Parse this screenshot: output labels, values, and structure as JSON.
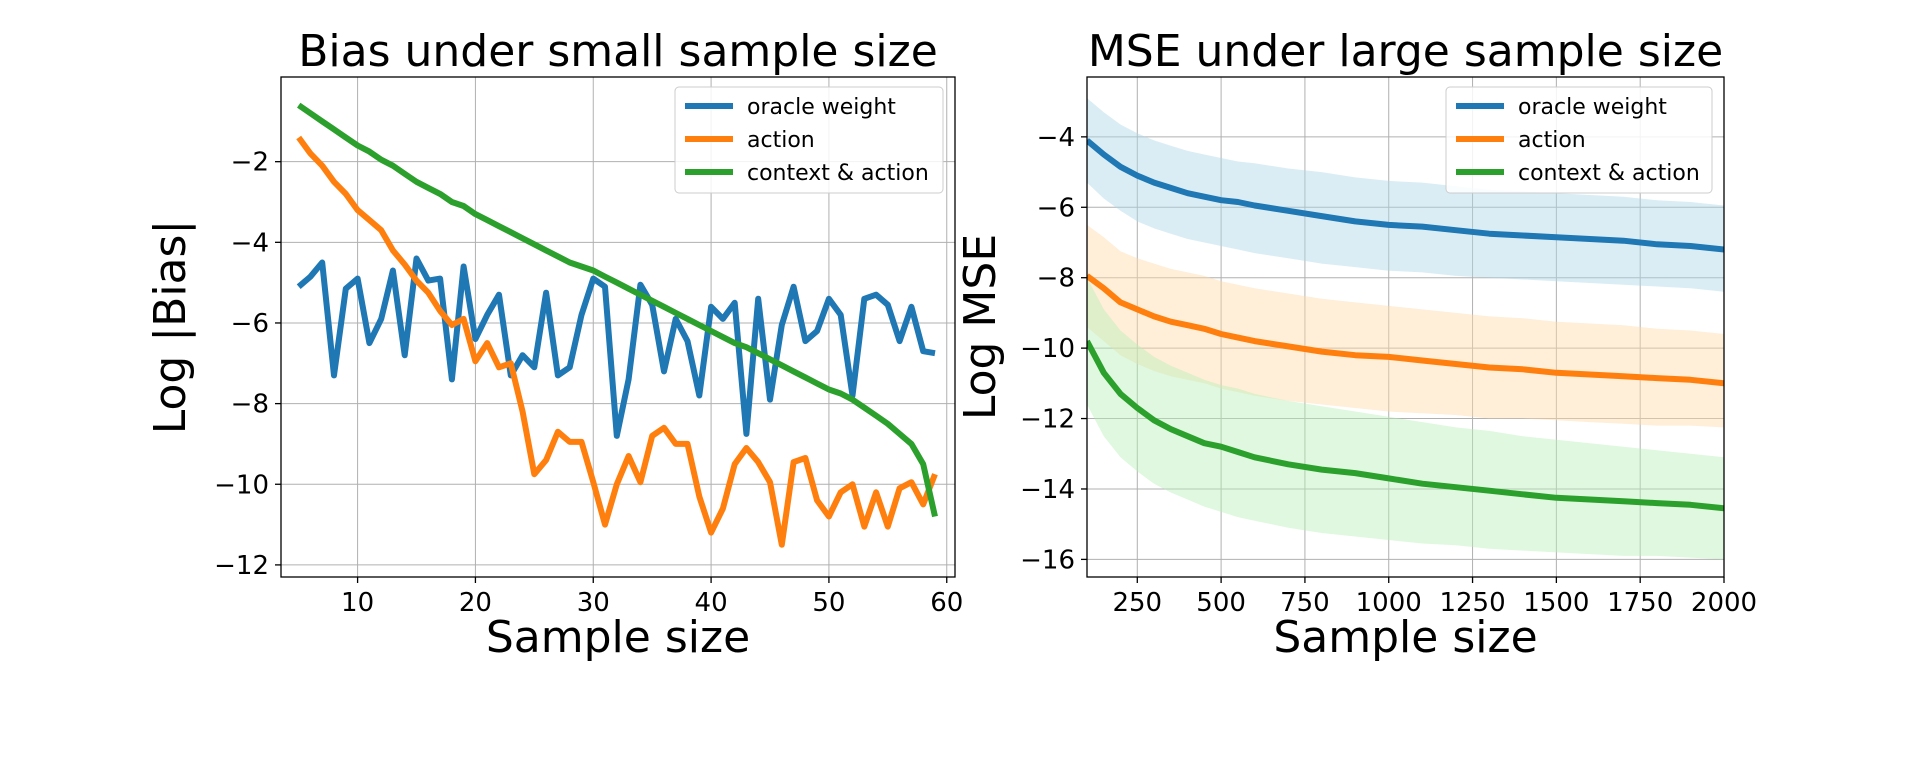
{
  "chart_data": [
    {
      "type": "line",
      "title": "Bias under small sample size",
      "xlabel": "Sample size",
      "ylabel": "Log |Bias|",
      "xlim": [
        3.5,
        60.7
      ],
      "ylim": [
        -12.3,
        0.1
      ],
      "xticks": [
        10,
        20,
        30,
        40,
        50,
        60
      ],
      "yticks": [
        -2,
        -4,
        -6,
        -8,
        -10,
        -12
      ],
      "xtick_labels": [
        "10",
        "20",
        "30",
        "40",
        "50",
        "60"
      ],
      "ytick_labels": [
        "−2",
        "−4",
        "−6",
        "−8",
        "−10",
        "−12"
      ],
      "grid": true,
      "legend": "top-right",
      "x": [
        5,
        6,
        7,
        8,
        9,
        10,
        11,
        12,
        13,
        14,
        15,
        16,
        17,
        18,
        19,
        20,
        21,
        22,
        23,
        24,
        25,
        26,
        27,
        28,
        29,
        30,
        31,
        32,
        33,
        34,
        35,
        36,
        37,
        38,
        39,
        40,
        41,
        42,
        43,
        44,
        45,
        46,
        47,
        48,
        49,
        50,
        51,
        52,
        53,
        54,
        55,
        56,
        57,
        58,
        59
      ],
      "series": [
        {
          "name": "oracle weight",
          "color": "#1f77b4",
          "values": [
            -5.1,
            -4.85,
            -4.5,
            -7.3,
            -5.15,
            -4.9,
            -6.5,
            -5.9,
            -4.7,
            -6.8,
            -4.4,
            -4.95,
            -4.9,
            -7.4,
            -4.6,
            -6.4,
            -5.8,
            -5.3,
            -7.3,
            -6.8,
            -7.1,
            -5.25,
            -7.3,
            -7.1,
            -5.8,
            -4.9,
            -5.1,
            -8.8,
            -7.4,
            -5.05,
            -5.55,
            -7.2,
            -5.9,
            -6.45,
            -7.8,
            -5.6,
            -5.9,
            -5.5,
            -8.75,
            -5.4,
            -7.9,
            -6.05,
            -5.1,
            -6.45,
            -6.2,
            -5.4,
            -5.8,
            -7.8,
            -5.4,
            -5.3,
            -5.55,
            -6.45,
            -5.6,
            -6.7,
            -6.75
          ]
        },
        {
          "name": "action",
          "color": "#ff7f0e",
          "values": [
            -1.4,
            -1.8,
            -2.1,
            -2.5,
            -2.8,
            -3.2,
            -3.45,
            -3.7,
            -4.2,
            -4.55,
            -4.95,
            -5.25,
            -5.7,
            -6.05,
            -5.9,
            -6.95,
            -6.5,
            -7.1,
            -7.0,
            -8.2,
            -9.75,
            -9.4,
            -8.7,
            -8.95,
            -8.95,
            -9.95,
            -11.0,
            -10.0,
            -9.3,
            -9.95,
            -8.8,
            -8.6,
            -9.0,
            -9.0,
            -10.3,
            -11.2,
            -10.6,
            -9.5,
            -9.1,
            -9.45,
            -9.95,
            -11.5,
            -9.45,
            -9.35,
            -10.4,
            -10.8,
            -10.2,
            -10.0,
            -11.05,
            -10.2,
            -11.05,
            -10.1,
            -9.95,
            -10.5,
            -9.75
          ]
        },
        {
          "name": "context & action",
          "color": "#2ca02c",
          "values": [
            -0.6,
            -0.8,
            -1.0,
            -1.2,
            -1.4,
            -1.6,
            -1.75,
            -1.95,
            -2.1,
            -2.3,
            -2.5,
            -2.65,
            -2.8,
            -3.0,
            -3.1,
            -3.3,
            -3.45,
            -3.6,
            -3.75,
            -3.9,
            -4.05,
            -4.2,
            -4.35,
            -4.5,
            -4.6,
            -4.7,
            -4.85,
            -5.0,
            -5.15,
            -5.3,
            -5.45,
            -5.6,
            -5.75,
            -5.9,
            -6.05,
            -6.2,
            -6.35,
            -6.5,
            -6.6,
            -6.75,
            -6.9,
            -7.05,
            -7.2,
            -7.35,
            -7.5,
            -7.65,
            -7.75,
            -7.9,
            -8.1,
            -8.3,
            -8.5,
            -8.75,
            -9.0,
            -9.5,
            -10.8
          ]
        }
      ]
    },
    {
      "type": "line",
      "title": "MSE under large sample size",
      "xlabel": "Sample size",
      "ylabel": "Log MSE",
      "xlim": [
        100,
        2000
      ],
      "ylim": [
        -16.5,
        -2.3
      ],
      "xticks": [
        250,
        500,
        750,
        1000,
        1250,
        1500,
        1750,
        2000
      ],
      "yticks": [
        -4,
        -6,
        -8,
        -10,
        -12,
        -14,
        -16
      ],
      "xtick_labels": [
        "250",
        "500",
        "750",
        "1000",
        "1250",
        "1500",
        "1750",
        "2000"
      ],
      "ytick_labels": [
        "−4",
        "−6",
        "−8",
        "−10",
        "−12",
        "−14",
        "−16"
      ],
      "grid": true,
      "legend": "top-right",
      "x": [
        100,
        150,
        200,
        250,
        300,
        350,
        400,
        450,
        500,
        550,
        600,
        700,
        800,
        900,
        1000,
        1100,
        1200,
        1300,
        1400,
        1500,
        1600,
        1700,
        1800,
        1900,
        2000
      ],
      "series": [
        {
          "name": "oracle weight",
          "color": "#1f77b4",
          "band_color": "#add8e6",
          "values": [
            -4.1,
            -4.5,
            -4.85,
            -5.1,
            -5.3,
            -5.45,
            -5.6,
            -5.7,
            -5.8,
            -5.85,
            -5.95,
            -6.1,
            -6.25,
            -6.4,
            -6.5,
            -6.55,
            -6.65,
            -6.75,
            -6.8,
            -6.85,
            -6.9,
            -6.95,
            -7.05,
            -7.1,
            -7.2
          ],
          "lower": [
            -5.3,
            -5.75,
            -6.1,
            -6.4,
            -6.6,
            -6.75,
            -6.9,
            -7.0,
            -7.1,
            -7.2,
            -7.3,
            -7.45,
            -7.6,
            -7.7,
            -7.8,
            -7.85,
            -7.95,
            -8.0,
            -8.05,
            -8.1,
            -8.15,
            -8.2,
            -8.25,
            -8.3,
            -8.4
          ],
          "upper": [
            -2.9,
            -3.3,
            -3.65,
            -3.9,
            -4.1,
            -4.25,
            -4.4,
            -4.5,
            -4.6,
            -4.7,
            -4.75,
            -4.9,
            -5.0,
            -5.15,
            -5.25,
            -5.3,
            -5.4,
            -5.5,
            -5.55,
            -5.6,
            -5.65,
            -5.7,
            -5.8,
            -5.85,
            -5.95
          ]
        },
        {
          "name": "action",
          "color": "#ff7f0e",
          "band_color": "#ffd9a8",
          "values": [
            -7.95,
            -8.3,
            -8.7,
            -8.9,
            -9.1,
            -9.25,
            -9.35,
            -9.45,
            -9.6,
            -9.7,
            -9.8,
            -9.95,
            -10.1,
            -10.2,
            -10.25,
            -10.35,
            -10.45,
            -10.55,
            -10.6,
            -10.7,
            -10.75,
            -10.8,
            -10.85,
            -10.9,
            -11.0
          ],
          "lower": [
            -9.4,
            -9.8,
            -10.2,
            -10.45,
            -10.65,
            -10.8,
            -10.9,
            -11.0,
            -11.15,
            -11.25,
            -11.35,
            -11.5,
            -11.6,
            -11.7,
            -11.8,
            -11.85,
            -11.9,
            -12.0,
            -12.0,
            -12.05,
            -12.1,
            -12.15,
            -12.2,
            -12.2,
            -12.25
          ],
          "upper": [
            -6.5,
            -6.85,
            -7.25,
            -7.45,
            -7.6,
            -7.75,
            -7.85,
            -7.95,
            -8.1,
            -8.2,
            -8.3,
            -8.45,
            -8.6,
            -8.7,
            -8.8,
            -8.9,
            -9.0,
            -9.1,
            -9.15,
            -9.25,
            -9.3,
            -9.35,
            -9.45,
            -9.5,
            -9.6
          ]
        },
        {
          "name": "context & action",
          "color": "#2ca02c",
          "band_color": "#b8efb8",
          "values": [
            -9.8,
            -10.7,
            -11.3,
            -11.7,
            -12.05,
            -12.3,
            -12.5,
            -12.7,
            -12.8,
            -12.95,
            -13.1,
            -13.3,
            -13.45,
            -13.55,
            -13.7,
            -13.85,
            -13.95,
            -14.05,
            -14.15,
            -14.25,
            -14.3,
            -14.35,
            -14.4,
            -14.45,
            -14.55
          ],
          "lower": [
            -11.6,
            -12.5,
            -13.1,
            -13.5,
            -13.85,
            -14.1,
            -14.3,
            -14.5,
            -14.65,
            -14.8,
            -14.9,
            -15.1,
            -15.25,
            -15.35,
            -15.45,
            -15.55,
            -15.6,
            -15.7,
            -15.75,
            -15.8,
            -15.85,
            -15.9,
            -15.9,
            -15.95,
            -16.0
          ],
          "upper": [
            -8.0,
            -8.9,
            -9.5,
            -9.9,
            -10.25,
            -10.5,
            -10.7,
            -10.9,
            -11.05,
            -11.15,
            -11.3,
            -11.5,
            -11.65,
            -11.8,
            -11.95,
            -12.1,
            -12.25,
            -12.35,
            -12.5,
            -12.6,
            -12.7,
            -12.8,
            -12.9,
            -13.0,
            -13.1
          ]
        }
      ]
    }
  ]
}
